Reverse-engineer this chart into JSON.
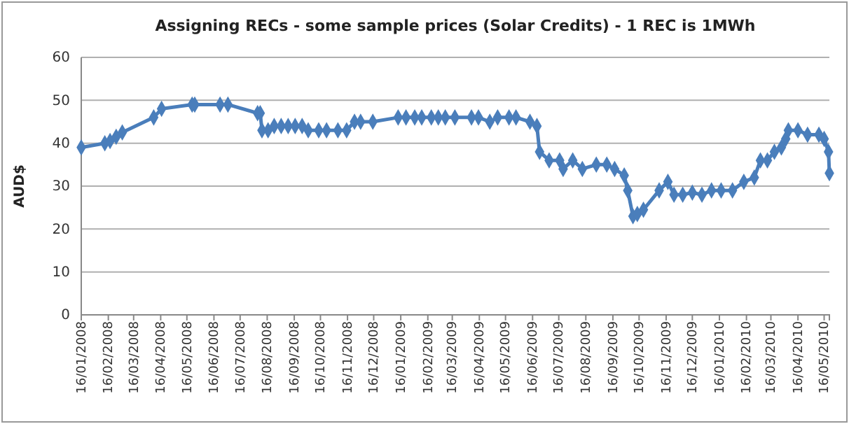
{
  "chart_data": {
    "type": "line",
    "title": "Assigning RECs - some sample prices (Solar Credits) - 1 REC is 1MWh",
    "ylabel": "AUD$",
    "x": [
      "2008-01-16",
      "2008-02-12",
      "2008-02-18",
      "2008-02-25",
      "2008-03-03",
      "2008-04-08",
      "2008-04-17",
      "2008-05-22",
      "2008-05-25",
      "2008-06-23",
      "2008-07-02",
      "2008-08-05",
      "2008-08-08",
      "2008-08-10",
      "2008-08-17",
      "2008-08-24",
      "2008-09-01",
      "2008-09-09",
      "2008-09-17",
      "2008-09-25",
      "2008-10-02",
      "2008-10-14",
      "2008-10-23",
      "2008-11-05",
      "2008-11-15",
      "2008-11-24",
      "2008-12-01",
      "2008-12-15",
      "2009-01-13",
      "2009-01-22",
      "2009-02-01",
      "2009-02-09",
      "2009-02-20",
      "2009-02-28",
      "2009-03-08",
      "2009-03-19",
      "2009-04-07",
      "2009-04-15",
      "2009-04-28",
      "2009-05-07",
      "2009-05-20",
      "2009-05-28",
      "2009-06-13",
      "2009-06-21",
      "2009-06-24",
      "2009-07-05",
      "2009-07-17",
      "2009-07-21",
      "2009-08-01",
      "2009-08-12",
      "2009-08-28",
      "2009-09-09",
      "2009-09-18",
      "2009-09-29",
      "2009-10-03",
      "2009-10-09",
      "2009-10-14",
      "2009-10-21",
      "2009-11-08",
      "2009-11-18",
      "2009-11-25",
      "2009-12-05",
      "2009-12-16",
      "2009-12-27",
      "2010-01-07",
      "2010-01-18",
      "2010-01-31",
      "2010-02-13",
      "2010-02-25",
      "2010-03-04",
      "2010-03-12",
      "2010-03-20",
      "2010-03-28",
      "2010-04-02",
      "2010-04-05",
      "2010-04-16",
      "2010-04-27",
      "2010-05-10",
      "2010-05-16",
      "2010-05-21",
      "2010-05-22"
    ],
    "series": [
      {
        "color": "#4a7ebb",
        "values": [
          39,
          40,
          40.5,
          41.5,
          42.5,
          46,
          48,
          49,
          49,
          49,
          49,
          47,
          47,
          43,
          43,
          44,
          44,
          44,
          44,
          44,
          43,
          43,
          43,
          43,
          43,
          45,
          45,
          45,
          46,
          46,
          46,
          46,
          46,
          46,
          46,
          46,
          46,
          46,
          45,
          46,
          46,
          46,
          45,
          44,
          38,
          36,
          36,
          34,
          36,
          34,
          35,
          35,
          34,
          32.5,
          29,
          23,
          23.5,
          24.5,
          29,
          31,
          28,
          28,
          28.5,
          28,
          29,
          29,
          29,
          31,
          32,
          36,
          36,
          38,
          39,
          41,
          43,
          43,
          42,
          42,
          41,
          38,
          33
        ]
      }
    ],
    "xlim": [
      "2008-01-16",
      "2010-05-22"
    ],
    "xticks": [
      {
        "value": "2008-01-16",
        "label": "16/01/2008"
      },
      {
        "value": "2008-02-16",
        "label": "16/02/2008"
      },
      {
        "value": "2008-03-16",
        "label": "16/03/2008"
      },
      {
        "value": "2008-04-16",
        "label": "16/04/2008"
      },
      {
        "value": "2008-05-16",
        "label": "16/05/2008"
      },
      {
        "value": "2008-06-16",
        "label": "16/06/2008"
      },
      {
        "value": "2008-07-16",
        "label": "16/07/2008"
      },
      {
        "value": "2008-08-16",
        "label": "16/08/2008"
      },
      {
        "value": "2008-09-16",
        "label": "16/09/2008"
      },
      {
        "value": "2008-10-16",
        "label": "16/10/2008"
      },
      {
        "value": "2008-11-16",
        "label": "16/11/2008"
      },
      {
        "value": "2008-12-16",
        "label": "16/12/2008"
      },
      {
        "value": "2009-01-16",
        "label": "16/01/2009"
      },
      {
        "value": "2009-02-16",
        "label": "16/02/2009"
      },
      {
        "value": "2009-03-16",
        "label": "16/03/2009"
      },
      {
        "value": "2009-04-16",
        "label": "16/04/2009"
      },
      {
        "value": "2009-05-16",
        "label": "16/05/2009"
      },
      {
        "value": "2009-06-16",
        "label": "16/06/2009"
      },
      {
        "value": "2009-07-16",
        "label": "16/07/2009"
      },
      {
        "value": "2009-08-16",
        "label": "16/08/2009"
      },
      {
        "value": "2009-09-16",
        "label": "16/09/2009"
      },
      {
        "value": "2009-10-16",
        "label": "16/10/2009"
      },
      {
        "value": "2009-11-16",
        "label": "16/11/2009"
      },
      {
        "value": "2009-12-16",
        "label": "16/12/2009"
      },
      {
        "value": "2010-01-16",
        "label": "16/01/2010"
      },
      {
        "value": "2010-02-16",
        "label": "16/02/2010"
      },
      {
        "value": "2010-03-16",
        "label": "16/03/2010"
      },
      {
        "value": "2010-04-16",
        "label": "16/04/2010"
      },
      {
        "value": "2010-05-16",
        "label": "16/05/2010"
      }
    ],
    "ylim": [
      0,
      60
    ],
    "yticks": [
      0,
      10,
      20,
      30,
      40,
      50,
      60
    ],
    "grid": "y",
    "marker": "diamond",
    "line_style": "solid"
  }
}
